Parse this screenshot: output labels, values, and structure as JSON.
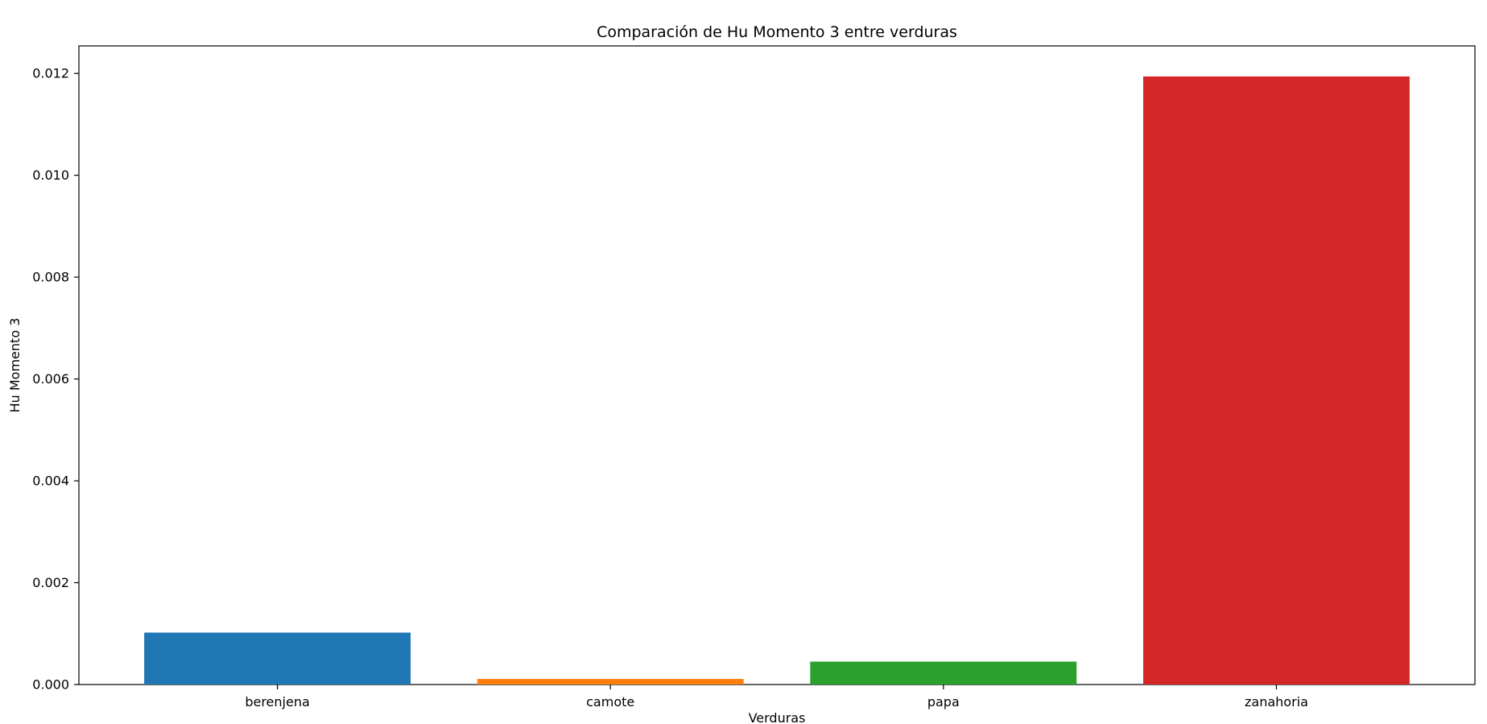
{
  "chart_data": {
    "type": "bar",
    "title": "Comparación de Hu Momento 3 entre verduras",
    "xlabel": "Verduras",
    "ylabel": "Hu Momento 3",
    "categories": [
      "berenjena",
      "camote",
      "papa",
      "zanahoria"
    ],
    "values": [
      0.00102,
      0.00011,
      0.00045,
      0.01194
    ],
    "colors": [
      "#1f77b4",
      "#ff7f0e",
      "#2ca02c",
      "#d62728"
    ],
    "ylim": [
      0,
      0.01254
    ],
    "yticks": [
      0,
      0.002,
      0.004,
      0.006,
      0.008,
      0.01,
      0.012
    ],
    "ytick_labels": [
      "0.000",
      "0.002",
      "0.004",
      "0.006",
      "0.008",
      "0.010",
      "0.012"
    ],
    "grid": false,
    "legend": "none"
  }
}
